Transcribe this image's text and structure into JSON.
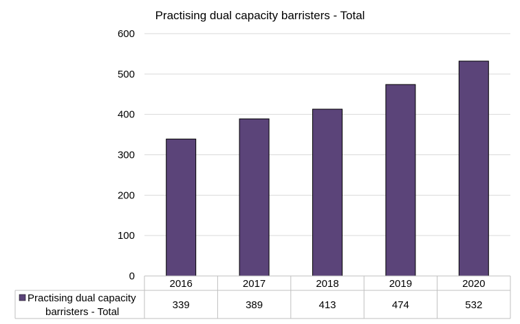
{
  "chart_data": {
    "type": "bar",
    "title": "Practising dual capacity barristers - Total",
    "categories": [
      "2016",
      "2017",
      "2018",
      "2019",
      "2020"
    ],
    "series": [
      {
        "name": "Practising dual capacity barristers - Total",
        "values": [
          339,
          389,
          413,
          474,
          532
        ],
        "color": "#5b4479"
      }
    ],
    "ylim": [
      0,
      600
    ],
    "y_ticks": [
      "0",
      "100",
      "200",
      "300",
      "400",
      "500",
      "600"
    ],
    "grid": true,
    "legend": "data-table",
    "data_table": true,
    "legend_label_lines": [
      "Practising dual capacity",
      "barristers - Total"
    ],
    "table_values": [
      "339",
      "389",
      "413",
      "474",
      "532"
    ]
  }
}
